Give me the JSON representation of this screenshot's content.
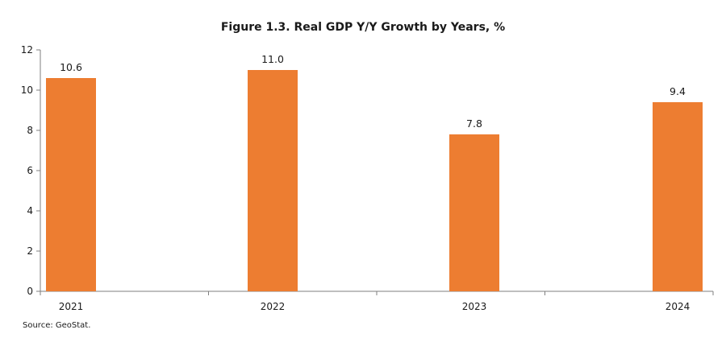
{
  "chart_data": {
    "type": "bar",
    "title": "Figure 1.3. Real GDP Y/Y Growth by Years, %",
    "categories": [
      "2021",
      "2022",
      "2023",
      "2024"
    ],
    "values": [
      10.6,
      11.0,
      7.8,
      9.4
    ],
    "data_labels": [
      "10.6",
      "11.0",
      "7.8",
      "9.4"
    ],
    "xlabel": "",
    "ylabel": "",
    "ylim": [
      0,
      12
    ],
    "yticks": [
      0,
      2,
      4,
      6,
      8,
      10,
      12
    ],
    "grid": false,
    "legend": "none",
    "bar_color": "#ED7D31",
    "source": "Source: GeoStat."
  }
}
